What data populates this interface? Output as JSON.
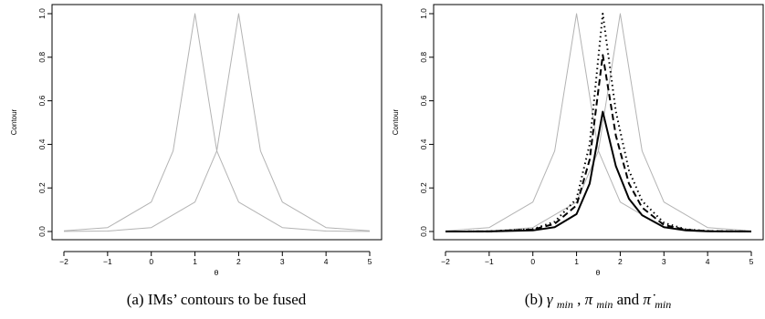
{
  "chart_data": [
    {
      "type": "line",
      "caption": "(a) IMs’ contours to be fused",
      "xlabel": "θ",
      "ylabel": "Contour",
      "xlim": [
        -2,
        5
      ],
      "ylim": [
        0,
        1
      ],
      "xticks": [
        "−2",
        "−1",
        "0",
        "1",
        "2",
        "3",
        "4",
        "5"
      ],
      "yticks": [
        "0.0",
        "0.2",
        "0.4",
        "0.6",
        "0.8",
        "1.0"
      ],
      "series": [
        {
          "style": "solid",
          "color": "#b3b3b3",
          "width": 1,
          "x": [
            -2,
            -1,
            0,
            0.5,
            1,
            1.5,
            2,
            3,
            4,
            5
          ],
          "y": [
            0.003,
            0.018,
            0.135,
            0.37,
            1.0,
            0.37,
            0.135,
            0.018,
            0.002,
            0.0003
          ]
        },
        {
          "style": "solid",
          "color": "#b3b3b3",
          "width": 1,
          "x": [
            -2,
            -1,
            0,
            1,
            1.5,
            2,
            2.5,
            3,
            4,
            5
          ],
          "y": [
            0.0003,
            0.002,
            0.018,
            0.135,
            0.37,
            1.0,
            0.37,
            0.135,
            0.018,
            0.003
          ]
        }
      ]
    },
    {
      "type": "line",
      "caption_parts": [
        "(b) ",
        "γ",
        "min",
        ", ",
        "π",
        "min",
        " and ",
        "π̇",
        "min"
      ],
      "xlabel": "θ",
      "ylabel": "Contour",
      "xlim": [
        -2,
        5
      ],
      "ylim": [
        0,
        1
      ],
      "xticks": [
        "−2",
        "−1",
        "0",
        "1",
        "2",
        "3",
        "4",
        "5"
      ],
      "yticks": [
        "0.0",
        "0.2",
        "0.4",
        "0.6",
        "0.8",
        "1.0"
      ],
      "series": [
        {
          "style": "solid",
          "color": "#b3b3b3",
          "width": 1,
          "x": [
            -2,
            -1,
            0,
            0.5,
            1,
            1.5,
            2,
            3,
            4,
            5
          ],
          "y": [
            0.003,
            0.018,
            0.135,
            0.37,
            1.0,
            0.37,
            0.135,
            0.018,
            0.002,
            0.0003
          ]
        },
        {
          "style": "solid",
          "color": "#b3b3b3",
          "width": 1,
          "x": [
            -2,
            -1,
            0,
            1,
            1.5,
            2,
            2.5,
            3,
            4,
            5
          ],
          "y": [
            0.0003,
            0.002,
            0.018,
            0.135,
            0.37,
            1.0,
            0.37,
            0.135,
            0.018,
            0.003
          ]
        },
        {
          "style": "solid",
          "color": "#000000",
          "width": 2,
          "x": [
            -2,
            -1,
            0,
            0.5,
            1,
            1.3,
            1.6,
            1.9,
            2.2,
            2.5,
            3,
            3.5,
            4,
            5
          ],
          "y": [
            0,
            0.0004,
            0.005,
            0.02,
            0.08,
            0.22,
            0.55,
            0.3,
            0.15,
            0.075,
            0.02,
            0.005,
            0.0012,
            0
          ]
        },
        {
          "style": "dashed",
          "color": "#000000",
          "width": 2,
          "x": [
            -2,
            -1,
            0,
            0.5,
            1,
            1.3,
            1.6,
            1.9,
            2.2,
            2.5,
            3,
            3.5,
            4,
            5
          ],
          "y": [
            0,
            0.0005,
            0.009,
            0.035,
            0.12,
            0.33,
            0.81,
            0.44,
            0.22,
            0.11,
            0.03,
            0.008,
            0.002,
            0
          ]
        },
        {
          "style": "dotted",
          "color": "#000000",
          "width": 2,
          "x": [
            -2,
            -1,
            0,
            0.5,
            1,
            1.3,
            1.6,
            1.9,
            2.2,
            2.5,
            3,
            3.5,
            4,
            5
          ],
          "y": [
            0,
            0.0006,
            0.011,
            0.045,
            0.15,
            0.4,
            1.0,
            0.55,
            0.28,
            0.14,
            0.04,
            0.01,
            0.0025,
            0
          ]
        }
      ]
    }
  ]
}
